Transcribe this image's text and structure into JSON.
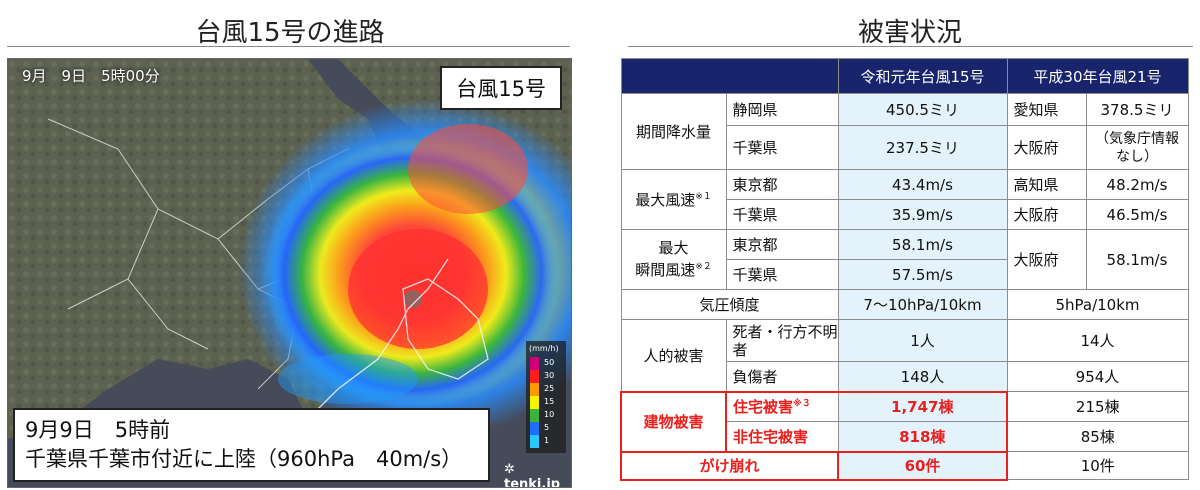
{
  "left_title": "台風15号の進路",
  "right_title": "被害状況",
  "map": {
    "timestamp": "9月　9日　5時00分",
    "typhoon_label": "台風15号",
    "caption_line1": "9月9日　5時前",
    "caption_line2": "千葉県千葉市付近に上陸（960hPa　40m/s）",
    "legend_unit": "(mm/h)",
    "legend_values": [
      "50",
      "30",
      "25",
      "15",
      "10",
      "5",
      "1"
    ],
    "legend_colors": [
      "#d1007a",
      "#ff1e1e",
      "#ff9900",
      "#f5f500",
      "#3cb43c",
      "#1e6eff",
      "#28c8ff"
    ],
    "watermark": "tenki.jp"
  },
  "table": {
    "col_headers": [
      "令和元年台風15号",
      "平成30年台風21号"
    ],
    "rain": {
      "label": "期間降水量",
      "rows": [
        {
          "pref": "静岡県",
          "val15": "450.5ミリ",
          "pref21": "愛知県",
          "val21": "378.5ミリ"
        },
        {
          "pref": "千葉県",
          "val15": "237.5ミリ",
          "pref21": "大阪府",
          "val21": "（気象庁情報なし）"
        }
      ]
    },
    "maxwind": {
      "label": "最大風速",
      "note": "※１",
      "rows": [
        {
          "pref": "東京都",
          "val15": "43.4m/s",
          "pref21": "高知県",
          "val21": "48.2m/s"
        },
        {
          "pref": "千葉県",
          "val15": "35.9m/s",
          "pref21": "大阪府",
          "val21": "46.5m/s"
        }
      ]
    },
    "gust": {
      "label1": "最大",
      "label2": "瞬間風速",
      "note": "※２",
      "rows": [
        {
          "pref": "東京都",
          "val15": "58.1m/s"
        },
        {
          "pref": "千葉県",
          "val15": "57.5m/s"
        }
      ],
      "pref21": "大阪府",
      "val21": "58.1m/s"
    },
    "pressure": {
      "label": "気圧傾度",
      "val15": "7〜10hPa/10km",
      "val21": "5hPa/10km"
    },
    "human": {
      "label": "人的被害",
      "rows": [
        {
          "sub": "死者・行方不明者",
          "val15": "1人",
          "val21": "14人"
        },
        {
          "sub": "負傷者",
          "val15": "148人",
          "val21": "954人"
        }
      ]
    },
    "building": {
      "label": "建物被害",
      "rows": [
        {
          "sub": "住宅被害",
          "note": "※３",
          "val15": "1,747棟",
          "val21": "215棟"
        },
        {
          "sub": "非住宅被害",
          "note": "",
          "val15": "818棟",
          "val21": "85棟"
        }
      ]
    },
    "landslide": {
      "label": "がけ崩れ",
      "val15": "60件",
      "val21": "10件"
    }
  }
}
